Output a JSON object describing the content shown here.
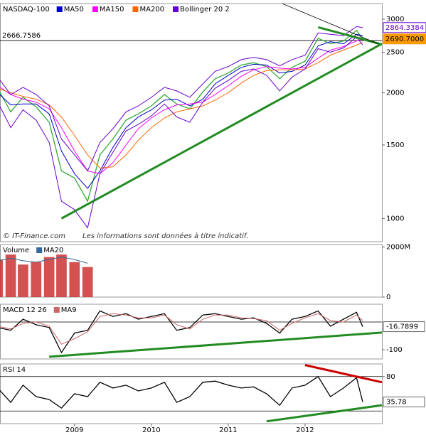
{
  "chart_data": [
    {
      "type": "line",
      "title": "NASDAQ-100",
      "log": true,
      "x": [
        2008,
        2008.17,
        2008.33,
        2008.5,
        2008.67,
        2008.83,
        2009,
        2009.17,
        2009.33,
        2009.5,
        2009.67,
        2009.83,
        2010,
        2010.17,
        2010.33,
        2010.5,
        2010.67,
        2010.83,
        2011,
        2011.17,
        2011.33,
        2011.5,
        2011.67,
        2011.83,
        2012,
        2012.17,
        2012.33,
        2012.5,
        2012.67,
        2012.75
      ],
      "xlim": [
        2008.03,
        2013.0
      ],
      "ylim": [
        880,
        3270
      ],
      "yticks": [
        3000,
        2500,
        2000,
        1500,
        1000
      ],
      "series": [
        {
          "name": null,
          "color": "#33aa33",
          "values": [
            2050,
            1800,
            1950,
            1850,
            1700,
            1300,
            1250,
            1100,
            1420,
            1550,
            1720,
            1780,
            1860,
            1980,
            1880,
            1830,
            2010,
            2160,
            2230,
            2330,
            2360,
            2310,
            2160,
            2300,
            2380,
            2700,
            2620,
            2660,
            2820,
            2690.7
          ]
        },
        {
          "name": "MA50",
          "color": "#0000cc",
          "values": [
            2000,
            1870,
            1880,
            1880,
            1780,
            1450,
            1280,
            1180,
            1300,
            1480,
            1650,
            1750,
            1820,
            1920,
            1930,
            1860,
            1930,
            2100,
            2200,
            2300,
            2340,
            2330,
            2230,
            2250,
            2330,
            2590,
            2650,
            2620,
            2760,
            2740
          ]
        },
        {
          "name": "MA150",
          "color": "#ff00ff",
          "values": [
            2080,
            1980,
            1930,
            1900,
            1830,
            1650,
            1450,
            1300,
            1280,
            1360,
            1500,
            1640,
            1740,
            1820,
            1870,
            1880,
            1900,
            1980,
            2080,
            2190,
            2270,
            2310,
            2290,
            2280,
            2300,
            2420,
            2530,
            2580,
            2660,
            2690
          ]
        },
        {
          "name": "MA200",
          "color": "#ff6600",
          "values": [
            2050,
            2000,
            1960,
            1930,
            1870,
            1750,
            1580,
            1420,
            1320,
            1330,
            1420,
            1540,
            1650,
            1740,
            1800,
            1830,
            1860,
            1920,
            2000,
            2110,
            2200,
            2260,
            2270,
            2270,
            2280,
            2360,
            2460,
            2530,
            2600,
            2640
          ]
        },
        {
          "name": "Bollinger 20 2",
          "color": "#6600cc",
          "values": [
            2180,
            1980,
            2060,
            1980,
            1860,
            1550,
            1420,
            1300,
            1520,
            1640,
            1800,
            1860,
            1950,
            2060,
            2020,
            1950,
            2100,
            2250,
            2310,
            2400,
            2430,
            2400,
            2320,
            2400,
            2460,
            2780,
            2760,
            2740,
            2880,
            2864.3384
          ],
          "lower": [
            1900,
            1650,
            1820,
            1720,
            1520,
            1100,
            1050,
            950,
            1280,
            1440,
            1620,
            1680,
            1760,
            1880,
            1750,
            1700,
            1900,
            2050,
            2140,
            2250,
            2280,
            2200,
            2020,
            2180,
            2280,
            2550,
            2500,
            2560,
            2720,
            2600
          ]
        }
      ],
      "levels": [
        2666.7586
      ],
      "end_labels": [
        {
          "value": 2864.3384,
          "label": "2864.3384",
          "color": "#6600cc"
        },
        {
          "value": 2690.7,
          "label": "2690.7000",
          "color": "#ff9900"
        }
      ],
      "trendlines": [
        {
          "x": [
            2008.83,
            2013.0
          ],
          "y": [
            1000,
            2620
          ],
          "color": "#228B22"
        },
        {
          "x": [
            2012.17,
            2013.0
          ],
          "y": [
            2870,
            2610
          ],
          "color": "#228B22"
        },
        {
          "x": [
            2011.65,
            2012.95
          ],
          "y": [
            3300,
            2620
          ],
          "color": "#000000"
        }
      ],
      "annotations": [
        "© IT-Finance.com",
        "Les informations sont données à titre indicatif."
      ]
    },
    {
      "type": "bar",
      "title": "Volume",
      "x": [
        2008,
        2008.17,
        2008.33,
        2008.5,
        2008.67,
        2008.83,
        2009,
        2009.17
      ],
      "xlim": [
        2008.03,
        2013.0
      ],
      "ylim": [
        0,
        2100
      ],
      "yticks": [
        {
          "value": 2000,
          "label": "2000M"
        },
        0
      ],
      "series": [
        {
          "name": null,
          "color": "#cc3333",
          "values": [
            1500,
            1700,
            1300,
            1400,
            1600,
            1700,
            1400,
            1200
          ]
        },
        {
          "name": "MA20",
          "color": "#336699",
          "values": [
            1450,
            1550,
            1450,
            1400,
            1500,
            1600,
            1500,
            1350
          ]
        }
      ]
    },
    {
      "type": "line",
      "title": "MACD 12 26",
      "x": [
        2008,
        2008.17,
        2008.33,
        2008.5,
        2008.67,
        2008.83,
        2009,
        2009.17,
        2009.33,
        2009.5,
        2009.67,
        2009.83,
        2010,
        2010.17,
        2010.33,
        2010.5,
        2010.67,
        2010.83,
        2011,
        2011.17,
        2011.33,
        2011.5,
        2011.67,
        2011.83,
        2012,
        2012.17,
        2012.33,
        2012.5,
        2012.67,
        2012.75
      ],
      "xlim": [
        2008.03,
        2013.0
      ],
      "ylim": [
        -133,
        64
      ],
      "yticks": [
        -100
      ],
      "levels": [
        0
      ],
      "series": [
        {
          "name": null,
          "color": "#000000",
          "values": [
            -20,
            -30,
            10,
            -10,
            -20,
            -110,
            -40,
            -30,
            40,
            20,
            30,
            10,
            20,
            30,
            -30,
            -20,
            25,
            30,
            20,
            10,
            15,
            -5,
            -40,
            10,
            20,
            40,
            -15,
            10,
            35,
            -16.7899
          ],
          "last_label": true
        },
        {
          "name": "MA9",
          "color": "#cc6666",
          "values": [
            -15,
            -25,
            -5,
            0,
            -15,
            -80,
            -60,
            -35,
            20,
            30,
            25,
            15,
            15,
            25,
            -10,
            -25,
            10,
            25,
            25,
            15,
            12,
            5,
            -30,
            -5,
            15,
            30,
            5,
            0,
            25,
            5
          ]
        }
      ],
      "trendlines": [
        {
          "x": [
            2008.67,
            2013.0
          ],
          "y": [
            -125,
            -38
          ],
          "color": "#228B22"
        }
      ]
    },
    {
      "type": "line",
      "title": "RSI 14",
      "x": [
        2008,
        2008.17,
        2008.33,
        2008.5,
        2008.67,
        2008.83,
        2009,
        2009.17,
        2009.33,
        2009.5,
        2009.67,
        2009.83,
        2010,
        2010.17,
        2010.33,
        2010.5,
        2010.67,
        2010.83,
        2011,
        2011.17,
        2011.33,
        2011.5,
        2011.67,
        2011.83,
        2012,
        2012.17,
        2012.33,
        2012.5,
        2012.67,
        2012.75
      ],
      "xlim": [
        2008.03,
        2013.0
      ],
      "ylim": [
        -2,
        102
      ],
      "yticks": [
        80
      ],
      "levels": [
        20,
        80
      ],
      "xticks": [
        2009,
        2010,
        2011,
        2012
      ],
      "series": [
        {
          "name": null,
          "color": "#000000",
          "values": [
            60,
            35,
            65,
            45,
            40,
            25,
            50,
            45,
            70,
            60,
            65,
            55,
            60,
            70,
            35,
            45,
            70,
            72,
            65,
            60,
            62,
            50,
            30,
            60,
            65,
            80,
            45,
            60,
            78,
            35.78
          ],
          "last_label": true
        }
      ],
      "trendlines": [
        {
          "x": [
            2011.5,
            2013.0
          ],
          "y": [
            2,
            30
          ],
          "color": "#228B22"
        },
        {
          "x": [
            2012.0,
            2013.0
          ],
          "y": [
            100,
            70
          ],
          "color": "#cc0000"
        }
      ]
    }
  ]
}
